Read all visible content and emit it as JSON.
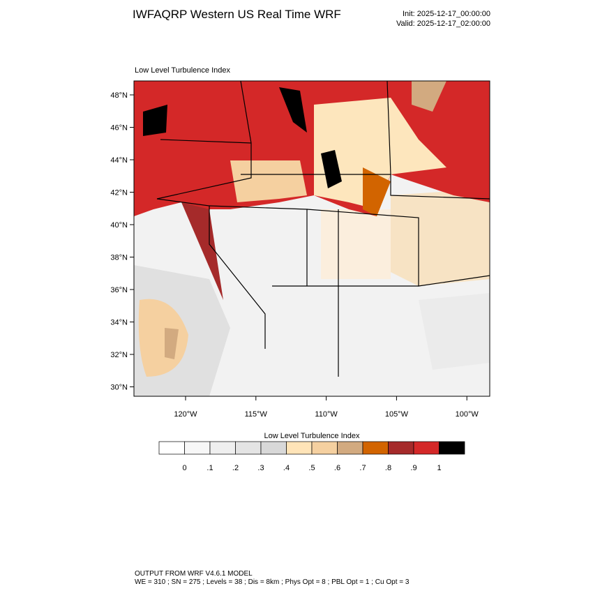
{
  "header": {
    "title": "IWFAQRP Western US Real Time WRF",
    "init": "Init: 2025-12-17_00:00:00",
    "valid": "Valid: 2025-12-17_02:00:00"
  },
  "map": {
    "subtitle": "Low Level Turbulence Index",
    "lat_labels": [
      "48°N",
      "46°N",
      "44°N",
      "42°N",
      "40°N",
      "38°N",
      "36°N",
      "34°N",
      "32°N",
      "30°N"
    ],
    "lon_labels": [
      "120°W",
      "115°W",
      "110°W",
      "105°W",
      "100°W"
    ]
  },
  "colorbar": {
    "title": "Low Level Turbulence Index",
    "labels": [
      "0",
      ".1",
      ".2",
      ".3",
      ".4",
      ".5",
      ".6",
      ".7",
      ".8",
      ".9",
      "1"
    ],
    "colors": [
      "#ffffff",
      "#f7f7f7",
      "#efefef",
      "#e4e4e4",
      "#d8d8d8",
      "#ffe4b8",
      "#f5d0a0",
      "#d2aa80",
      "#d26400",
      "#a52a2a",
      "#d42828",
      "#000000"
    ]
  },
  "footer": {
    "line1": "OUTPUT FROM WRF V4.6.1 MODEL",
    "line2": "WE = 310 ; SN = 275 ; Levels = 38 ; Dis = 8km ; Phys Opt = 8 ; PBL Opt = 1 ; Cu Opt = 3"
  }
}
